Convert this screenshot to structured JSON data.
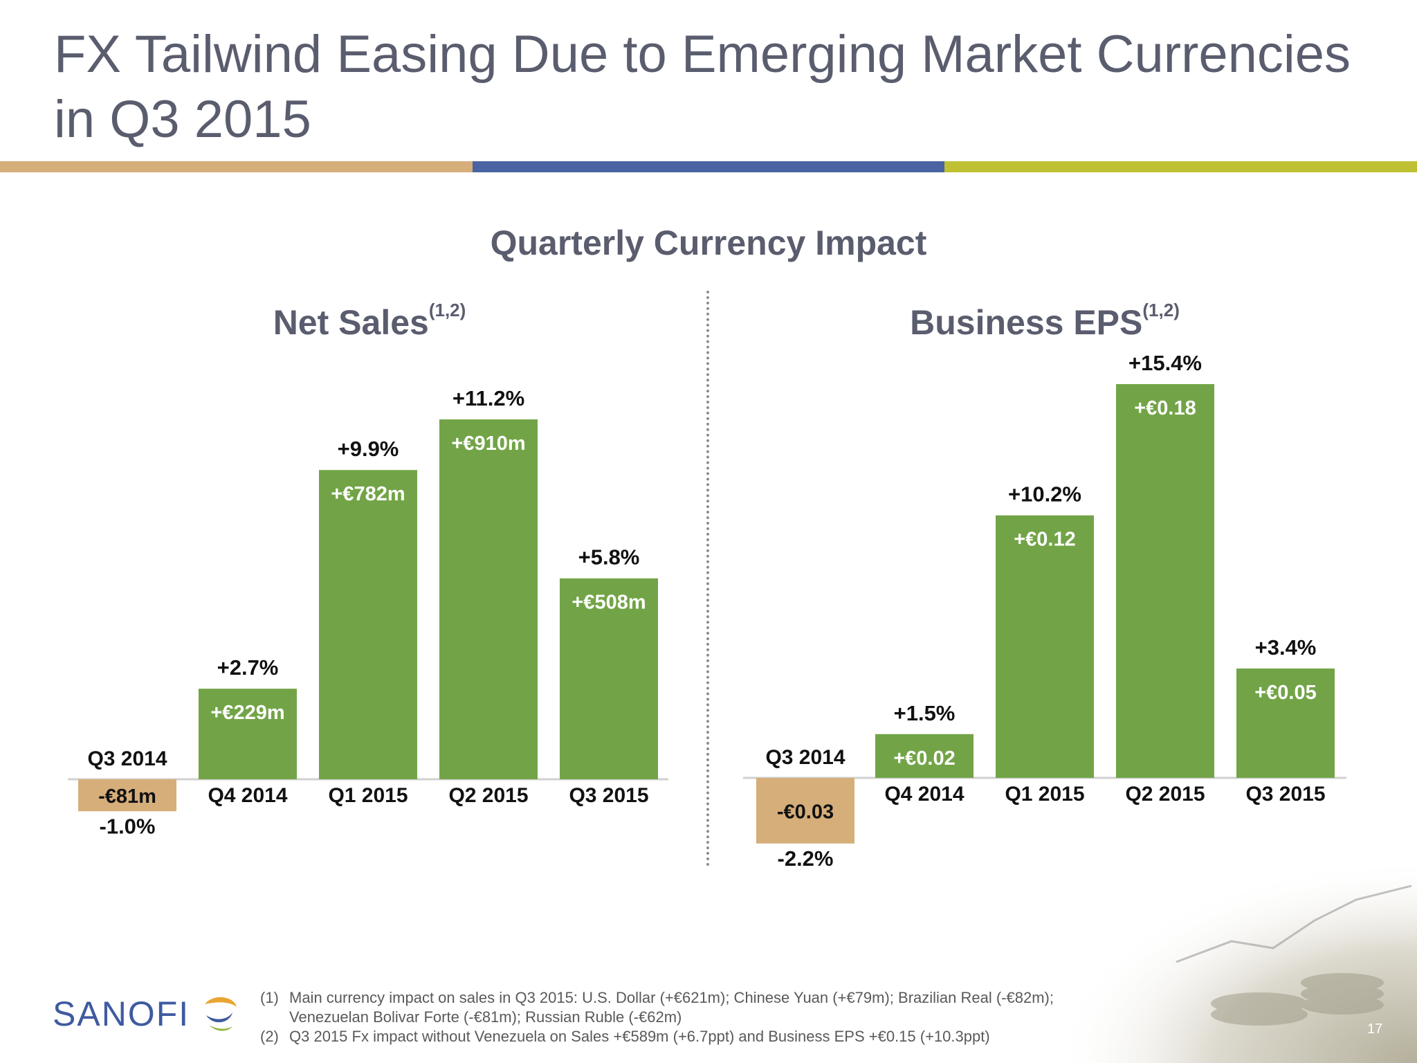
{
  "slide": {
    "title_line1": "FX Tailwind Easing Due to Emerging Market Currencies",
    "title_line2": "in Q3 2015",
    "main_title": "Quarterly Currency Impact",
    "footnotes": [
      {
        "num": "(1)",
        "text": "Main currency impact on sales in Q3 2015: U.S. Dollar (+€621m); Chinese Yuan (+€79m); Brazilian Real (-€82m); Venezuelan Bolivar Forte (-€81m); Russian Ruble (-€62m)"
      },
      {
        "num": "(2)",
        "text": "Q3 2015 Fx impact without Venezuela on Sales +€589m (+6.7ppt) and Business EPS +€0.15 (+10.3ppt)"
      }
    ],
    "logo_text": "SANOFI",
    "page_number": "17",
    "colors": {
      "title": "#5a5d6e",
      "positive": "#72a447",
      "negative": "#d5ae7a",
      "rule_tan": "#d5ae7a",
      "rule_blue": "#4a63a2",
      "rule_olive": "#c0c033"
    }
  },
  "chart_data": [
    {
      "type": "bar",
      "title": "Net Sales",
      "title_sup": "(1,2)",
      "categories": [
        "Q3 2014",
        "Q4 2014",
        "Q1 2015",
        "Q2 2015",
        "Q3 2015"
      ],
      "values": [
        -81,
        229,
        782,
        910,
        508
      ],
      "value_labels": [
        "-€81m",
        "+€229m",
        "+€782m",
        "+€910m",
        "+€508m"
      ],
      "pct_labels": [
        "-1.0%",
        "+2.7%",
        "+9.9%",
        "+11.2%",
        "+5.8%"
      ],
      "unit": "€m"
    },
    {
      "type": "bar",
      "title": "Business EPS",
      "title_sup": "(1,2)",
      "categories": [
        "Q3 2014",
        "Q4 2014",
        "Q1 2015",
        "Q2 2015",
        "Q3 2015"
      ],
      "values": [
        -0.03,
        0.02,
        0.12,
        0.18,
        0.05
      ],
      "value_labels": [
        "-€0.03",
        "+€0.02",
        "+€0.12",
        "+€0.18",
        "+€0.05"
      ],
      "pct_labels": [
        "-2.2%",
        "+1.5%",
        "+10.2%",
        "+15.4%",
        "+3.4%"
      ],
      "unit": "€"
    }
  ]
}
